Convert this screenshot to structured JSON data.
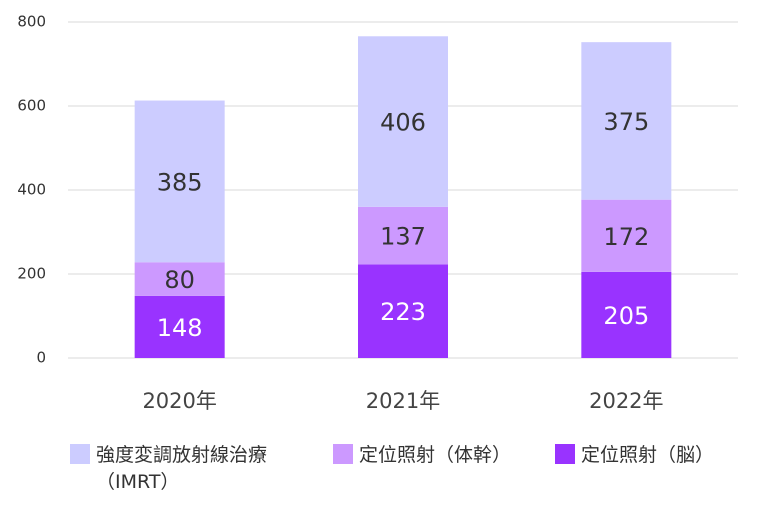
{
  "chart_data": {
    "type": "stacked_bar",
    "categories": [
      "2020年",
      "2021年",
      "2022年"
    ],
    "series": [
      {
        "name": "強度変調放射線治療（IMRT）",
        "color": "#ccccff",
        "values": [
          385,
          406,
          375
        ]
      },
      {
        "name": "定位照射（体幹）",
        "color": "#cc99ff",
        "values": [
          80,
          137,
          172
        ]
      },
      {
        "name": "定位照射（脳）",
        "color": "#9933ff",
        "values": [
          148,
          223,
          205
        ]
      }
    ],
    "ylim": [
      0,
      800
    ],
    "yticks": [
      0,
      200,
      400,
      600,
      800
    ],
    "grid": true,
    "legend": "bottom"
  }
}
